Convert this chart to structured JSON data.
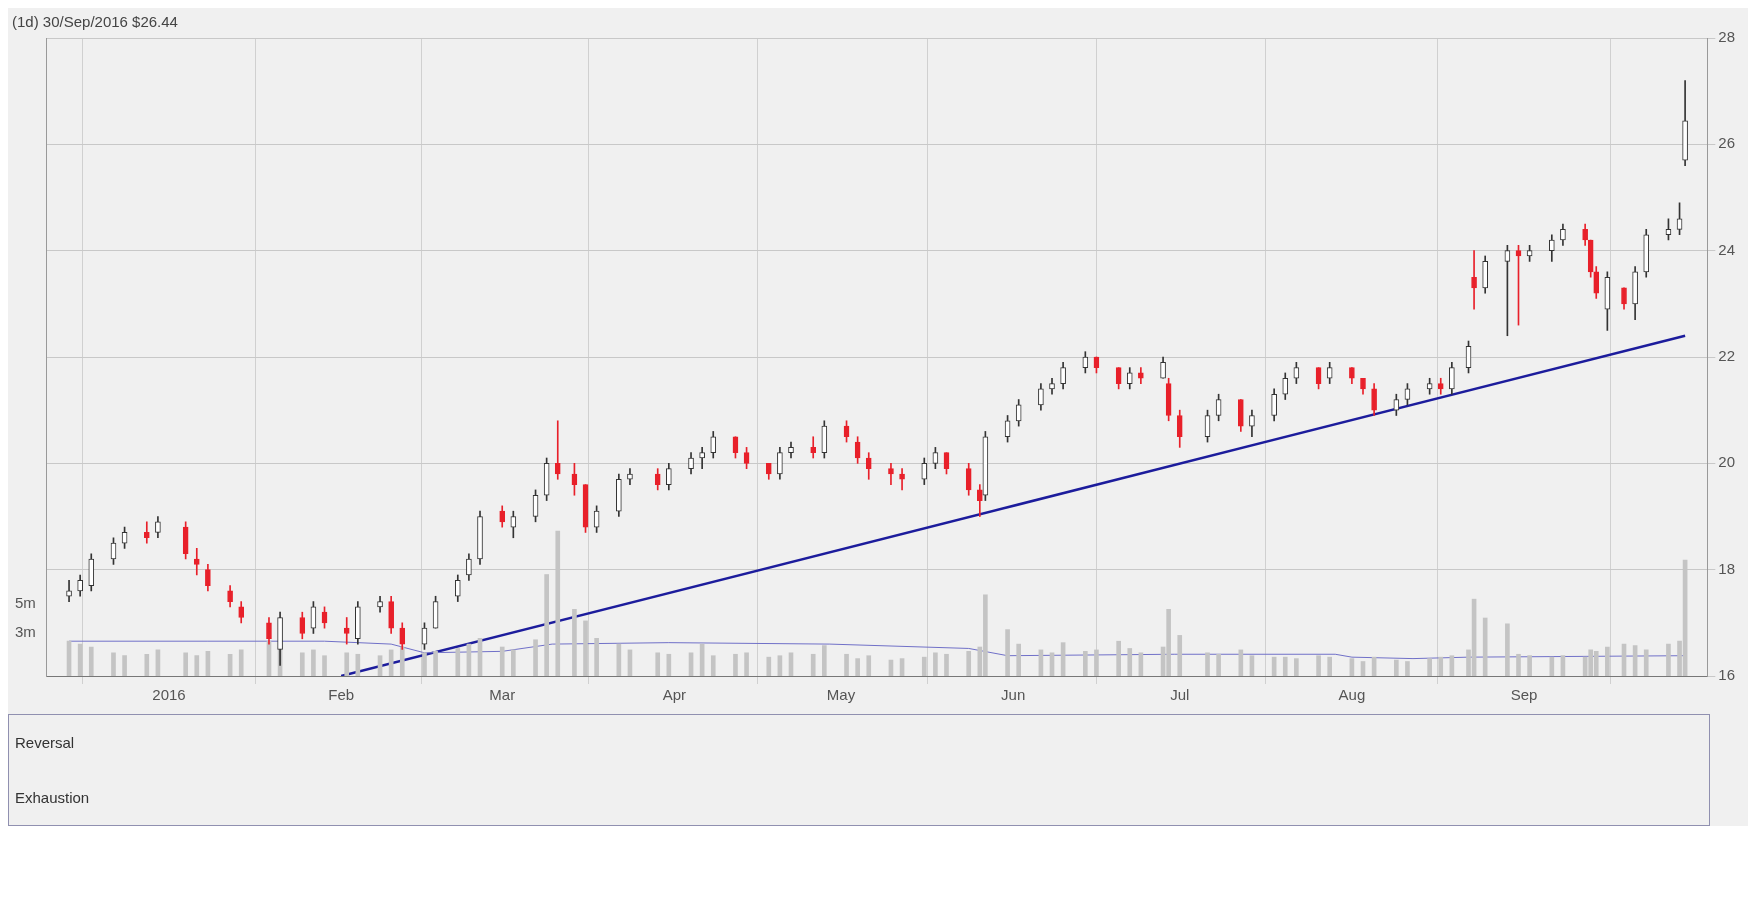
{
  "chart_data": [
    {
      "type": "candlestick",
      "title": "(1d) 30/Sep/2016 $26.44",
      "colors": [
        "#333333",
        "#333333",
        "#333333",
        "#333333",
        "#333333",
        "#e8202a",
        "#333333",
        "#e8202a",
        "#e8202a",
        "#e8202a",
        "#e8202a",
        "#e8202a",
        "#e8202a",
        "#333333",
        "#e8202a",
        "#333333",
        "#e8202a",
        "#e8202a",
        "#333333",
        "#333333",
        "#e8202a",
        "#e8202a",
        "#333333",
        "#333333",
        "#333333",
        "#333333",
        "#333333",
        "#e8202a",
        "#333333",
        "#333333",
        "#333333",
        "#e8202a",
        "#e8202a",
        "#e8202a",
        "#333333",
        "#333333",
        "#333333",
        "#e8202a",
        "#333333",
        "#333333",
        "#333333",
        "#333333",
        "#e8202a",
        "#e8202a",
        "#e8202a",
        "#333333",
        "#333333",
        "#e8202a",
        "#333333",
        "#e8202a",
        "#e8202a",
        "#e8202a",
        "#e8202a",
        "#e8202a",
        "#333333",
        "#333333",
        "#e8202a",
        "#e8202a",
        "#e8202a",
        "#333333",
        "#333333",
        "#333333",
        "#333333",
        "#333333",
        "#333333",
        "#333333",
        "#e8202a",
        "#e8202a",
        "#333333",
        "#e8202a",
        "#333333",
        "#e8202a",
        "#e8202a",
        "#333333",
        "#333333",
        "#e8202a",
        "#333333",
        "#333333",
        "#333333",
        "#333333",
        "#e8202a",
        "#333333",
        "#e8202a",
        "#e8202a",
        "#e8202a",
        "#333333",
        "#333333",
        "#333333",
        "#e8202a",
        "#333333",
        "#333333",
        "#e8202a",
        "#333333",
        "#333333",
        "#e8202a",
        "#333333",
        "#333333",
        "#333333",
        "#e8202a",
        "#e8202a",
        "#e8202a",
        "#333333",
        "#e8202a",
        "#333333",
        "#333333",
        "#333333",
        "#333333",
        "#333333"
      ],
      "grid": true,
      "legend": false,
      "xlim": [
        "2015-12-10",
        "2016-10-04"
      ],
      "xticks": [
        {
          "value": "2016-01-01",
          "label": "2016"
        },
        {
          "value": "2016-02-01",
          "label": "Feb"
        },
        {
          "value": "2016-03-01",
          "label": "Mar"
        },
        {
          "value": "2016-04-01",
          "label": "Apr"
        },
        {
          "value": "2016-05-01",
          "label": "May"
        },
        {
          "value": "2016-06-01",
          "label": "Jun"
        },
        {
          "value": "2016-07-01",
          "label": "Jul"
        },
        {
          "value": "2016-08-01",
          "label": "Aug"
        },
        {
          "value": "2016-09-01",
          "label": "Sep"
        }
      ],
      "ylim": [
        16,
        28
      ],
      "yticks": [
        16,
        18,
        20,
        22,
        24,
        26,
        28
      ],
      "y2lim": [
        0,
        44
      ],
      "y2ticks": [
        {
          "value": 3,
          "label": "3m"
        },
        {
          "value": 5,
          "label": "5m"
        }
      ],
      "x": [
        "2015-12-14",
        "2015-12-16",
        "2015-12-18",
        "2015-12-22",
        "2015-12-24",
        "2015-12-28",
        "2015-12-30",
        "2016-01-04",
        "2016-01-06",
        "2016-01-08",
        "2016-01-12",
        "2016-01-14",
        "2016-01-19",
        "2016-01-21",
        "2016-01-25",
        "2016-01-27",
        "2016-01-29",
        "2016-02-02",
        "2016-02-04",
        "2016-02-08",
        "2016-02-10",
        "2016-02-12",
        "2016-02-16",
        "2016-02-18",
        "2016-02-22",
        "2016-02-24",
        "2016-02-26",
        "2016-03-01",
        "2016-03-03",
        "2016-03-07",
        "2016-03-09",
        "2016-03-11",
        "2016-03-14",
        "2016-03-16",
        "2016-03-18",
        "2016-03-22",
        "2016-03-24",
        "2016-03-29",
        "2016-03-31",
        "2016-04-04",
        "2016-04-06",
        "2016-04-08",
        "2016-04-12",
        "2016-04-14",
        "2016-04-18",
        "2016-04-20",
        "2016-04-22",
        "2016-04-26",
        "2016-04-28",
        "2016-05-02",
        "2016-05-04",
        "2016-05-06",
        "2016-05-10",
        "2016-05-12",
        "2016-05-16",
        "2016-05-18",
        "2016-05-20",
        "2016-05-24",
        "2016-05-26",
        "2016-05-27",
        "2016-05-31",
        "2016-06-02",
        "2016-06-06",
        "2016-06-08",
        "2016-06-10",
        "2016-06-14",
        "2016-06-16",
        "2016-06-20",
        "2016-06-22",
        "2016-06-24",
        "2016-06-28",
        "2016-06-29",
        "2016-07-01",
        "2016-07-06",
        "2016-07-08",
        "2016-07-12",
        "2016-07-14",
        "2016-07-18",
        "2016-07-20",
        "2016-07-22",
        "2016-07-26",
        "2016-07-28",
        "2016-08-01",
        "2016-08-03",
        "2016-08-05",
        "2016-08-09",
        "2016-08-11",
        "2016-08-15",
        "2016-08-17",
        "2016-08-19",
        "2016-08-22",
        "2016-08-23",
        "2016-08-25",
        "2016-08-29",
        "2016-08-31",
        "2016-09-02",
        "2016-09-06",
        "2016-09-08",
        "2016-09-12",
        "2016-09-13",
        "2016-09-14",
        "2016-09-16",
        "2016-09-19",
        "2016-09-21",
        "2016-09-23",
        "2016-09-27",
        "2016-09-29",
        "2016-09-30"
      ],
      "ohlc": [
        [
          17.5,
          17.8,
          17.4,
          17.6
        ],
        [
          17.6,
          17.9,
          17.5,
          17.8
        ],
        [
          17.7,
          18.3,
          17.6,
          18.2
        ],
        [
          18.2,
          18.6,
          18.1,
          18.5
        ],
        [
          18.5,
          18.8,
          18.4,
          18.7
        ],
        [
          18.7,
          18.9,
          18.5,
          18.6
        ],
        [
          18.7,
          19.0,
          18.6,
          18.9
        ],
        [
          18.8,
          18.9,
          18.2,
          18.3
        ],
        [
          18.2,
          18.4,
          17.9,
          18.1
        ],
        [
          18.0,
          18.1,
          17.6,
          17.7
        ],
        [
          17.6,
          17.7,
          17.3,
          17.4
        ],
        [
          17.3,
          17.4,
          17.0,
          17.1
        ],
        [
          17.0,
          17.1,
          16.6,
          16.7
        ],
        [
          16.5,
          17.2,
          16.2,
          17.1
        ],
        [
          17.1,
          17.2,
          16.7,
          16.8
        ],
        [
          16.9,
          17.4,
          16.8,
          17.3
        ],
        [
          17.2,
          17.3,
          16.9,
          17.0
        ],
        [
          16.9,
          17.1,
          16.6,
          16.8
        ],
        [
          16.7,
          17.4,
          16.6,
          17.3
        ],
        [
          17.3,
          17.5,
          17.2,
          17.4
        ],
        [
          17.4,
          17.5,
          16.8,
          16.9
        ],
        [
          16.9,
          17.0,
          16.5,
          16.6
        ],
        [
          16.6,
          17.0,
          16.5,
          16.9
        ],
        [
          16.9,
          17.5,
          16.9,
          17.4
        ],
        [
          17.5,
          17.9,
          17.4,
          17.8
        ],
        [
          17.9,
          18.3,
          17.8,
          18.2
        ],
        [
          18.2,
          19.1,
          18.1,
          19.0
        ],
        [
          19.1,
          19.2,
          18.8,
          18.9
        ],
        [
          18.8,
          19.1,
          18.6,
          19.0
        ],
        [
          19.0,
          19.5,
          18.9,
          19.4
        ],
        [
          19.4,
          20.1,
          19.3,
          20.0
        ],
        [
          20.0,
          20.8,
          19.7,
          19.8
        ],
        [
          19.8,
          20.0,
          19.4,
          19.6
        ],
        [
          19.6,
          19.6,
          18.7,
          18.8
        ],
        [
          18.8,
          19.2,
          18.7,
          19.1
        ],
        [
          19.1,
          19.8,
          19.0,
          19.7
        ],
        [
          19.7,
          19.9,
          19.6,
          19.8
        ],
        [
          19.8,
          19.9,
          19.5,
          19.6
        ],
        [
          19.6,
          20.0,
          19.5,
          19.9
        ],
        [
          19.9,
          20.2,
          19.8,
          20.1
        ],
        [
          20.1,
          20.3,
          19.9,
          20.2
        ],
        [
          20.2,
          20.6,
          20.1,
          20.5
        ],
        [
          20.5,
          20.5,
          20.1,
          20.2
        ],
        [
          20.2,
          20.3,
          19.9,
          20.0
        ],
        [
          20.0,
          20.0,
          19.7,
          19.8
        ],
        [
          19.8,
          20.3,
          19.7,
          20.2
        ],
        [
          20.2,
          20.4,
          20.1,
          20.3
        ],
        [
          20.3,
          20.5,
          20.1,
          20.2
        ],
        [
          20.2,
          20.8,
          20.1,
          20.7
        ],
        [
          20.7,
          20.8,
          20.4,
          20.5
        ],
        [
          20.4,
          20.5,
          20.0,
          20.1
        ],
        [
          20.1,
          20.2,
          19.7,
          19.9
        ],
        [
          19.9,
          20.0,
          19.6,
          19.8
        ],
        [
          19.8,
          19.9,
          19.5,
          19.7
        ],
        [
          19.7,
          20.1,
          19.6,
          20.0
        ],
        [
          20.0,
          20.3,
          19.9,
          20.2
        ],
        [
          20.2,
          20.2,
          19.8,
          19.9
        ],
        [
          19.9,
          20.0,
          19.4,
          19.5
        ],
        [
          19.5,
          19.6,
          19.0,
          19.3
        ],
        [
          19.4,
          20.6,
          19.3,
          20.5
        ],
        [
          20.5,
          20.9,
          20.4,
          20.8
        ],
        [
          20.8,
          21.2,
          20.7,
          21.1
        ],
        [
          21.1,
          21.5,
          21.0,
          21.4
        ],
        [
          21.4,
          21.6,
          21.3,
          21.5
        ],
        [
          21.5,
          21.9,
          21.4,
          21.8
        ],
        [
          21.8,
          22.1,
          21.7,
          22.0
        ],
        [
          22.0,
          22.0,
          21.7,
          21.8
        ],
        [
          21.8,
          21.8,
          21.4,
          21.5
        ],
        [
          21.5,
          21.8,
          21.4,
          21.7
        ],
        [
          21.7,
          21.8,
          21.5,
          21.6
        ],
        [
          21.6,
          22.0,
          21.6,
          21.9
        ],
        [
          21.5,
          21.6,
          20.8,
          20.9
        ],
        [
          20.9,
          21.0,
          20.3,
          20.5
        ],
        [
          20.5,
          21.0,
          20.4,
          20.9
        ],
        [
          20.9,
          21.3,
          20.8,
          21.2
        ],
        [
          21.2,
          21.2,
          20.6,
          20.7
        ],
        [
          20.7,
          21.0,
          20.5,
          20.9
        ],
        [
          20.9,
          21.4,
          20.8,
          21.3
        ],
        [
          21.3,
          21.7,
          21.2,
          21.6
        ],
        [
          21.6,
          21.9,
          21.5,
          21.8
        ],
        [
          21.8,
          21.8,
          21.4,
          21.5
        ],
        [
          21.6,
          21.9,
          21.5,
          21.8
        ],
        [
          21.8,
          21.8,
          21.5,
          21.6
        ],
        [
          21.6,
          21.6,
          21.3,
          21.4
        ],
        [
          21.4,
          21.5,
          20.9,
          21.0
        ],
        [
          21.0,
          21.3,
          20.9,
          21.2
        ],
        [
          21.2,
          21.5,
          21.1,
          21.4
        ],
        [
          21.4,
          21.6,
          21.3,
          21.5
        ],
        [
          21.5,
          21.6,
          21.3,
          21.4
        ],
        [
          21.4,
          21.9,
          21.3,
          21.8
        ],
        [
          21.8,
          22.3,
          21.7,
          22.2
        ],
        [
          23.5,
          24.0,
          22.9,
          23.3
        ],
        [
          23.3,
          23.9,
          23.2,
          23.8
        ],
        [
          23.8,
          24.1,
          22.4,
          24.0
        ],
        [
          24.0,
          24.1,
          22.6,
          23.9
        ],
        [
          23.9,
          24.1,
          23.8,
          24.0
        ],
        [
          24.0,
          24.3,
          23.8,
          24.2
        ],
        [
          24.2,
          24.5,
          24.1,
          24.4
        ],
        [
          24.4,
          24.5,
          24.1,
          24.2
        ],
        [
          24.2,
          24.2,
          23.5,
          23.6
        ],
        [
          23.6,
          23.7,
          23.1,
          23.2
        ],
        [
          22.9,
          23.6,
          22.5,
          23.5
        ],
        [
          23.3,
          23.3,
          22.9,
          23.0
        ],
        [
          23.0,
          23.7,
          22.7,
          23.6
        ],
        [
          23.6,
          24.4,
          23.5,
          24.3
        ],
        [
          24.3,
          24.6,
          24.2,
          24.4
        ],
        [
          24.4,
          24.9,
          24.3,
          24.6
        ],
        [
          25.7,
          27.2,
          25.6,
          26.44
        ]
      ],
      "series": [
        {
          "type": "bar",
          "axis": "y2",
          "color": "#c4c4c4",
          "values": [
            2.4,
            2.2,
            2.0,
            1.6,
            1.4,
            1.5,
            1.8,
            1.6,
            1.4,
            1.7,
            1.5,
            1.8,
            2.4,
            2.0,
            1.6,
            1.8,
            1.4,
            1.6,
            1.5,
            1.4,
            1.8,
            2.0,
            1.6,
            1.7,
            1.9,
            2.2,
            2.6,
            2.0,
            1.8,
            2.5,
            7.0,
            10.0,
            4.6,
            3.8,
            2.6,
            2.2,
            1.8,
            1.6,
            1.5,
            1.6,
            2.2,
            1.4,
            1.5,
            1.6,
            1.3,
            1.4,
            1.6,
            1.5,
            2.1,
            1.5,
            1.2,
            1.4,
            1.1,
            1.2,
            1.3,
            1.6,
            1.5,
            1.7,
            2.0,
            5.6,
            3.2,
            2.2,
            1.8,
            1.6,
            2.3,
            1.7,
            1.8,
            2.4,
            1.9,
            1.6,
            2.0,
            4.6,
            2.8,
            1.6,
            1.5,
            1.8,
            1.4,
            1.3,
            1.3,
            1.2,
            1.4,
            1.3,
            1.2,
            1.0,
            1.3,
            1.1,
            1.0,
            1.2,
            1.3,
            1.4,
            1.8,
            5.3,
            4.0,
            3.6,
            1.5,
            1.4,
            1.3,
            1.4,
            1.3,
            1.8,
            1.7,
            2.0,
            2.2,
            2.1,
            1.8,
            2.2,
            2.4,
            8.0
          ]
        },
        {
          "type": "line",
          "axis": "y2",
          "color": "#7070c8",
          "x": [
            "2015-12-14",
            "2016-01-08",
            "2016-01-29",
            "2016-02-10",
            "2016-02-16",
            "2016-03-01",
            "2016-03-10",
            "2016-03-31",
            "2016-04-29",
            "2016-05-24",
            "2016-05-31",
            "2016-06-30",
            "2016-07-29",
            "2016-08-01",
            "2016-08-12",
            "2016-08-22",
            "2016-09-30"
          ],
          "values": [
            2.4,
            2.4,
            2.4,
            2.2,
            1.6,
            1.7,
            2.2,
            2.3,
            2.2,
            1.9,
            1.4,
            1.5,
            1.5,
            1.3,
            1.2,
            1.3,
            1.4
          ]
        },
        {
          "type": "line",
          "color": "#1c1c9c",
          "x": [
            "2016-02-01",
            "2016-09-30"
          ],
          "values": [
            16,
            22.4
          ]
        }
      ]
    },
    {
      "type": "other",
      "annotations": [
        "Reversal",
        "Exhaustion"
      ]
    }
  ]
}
